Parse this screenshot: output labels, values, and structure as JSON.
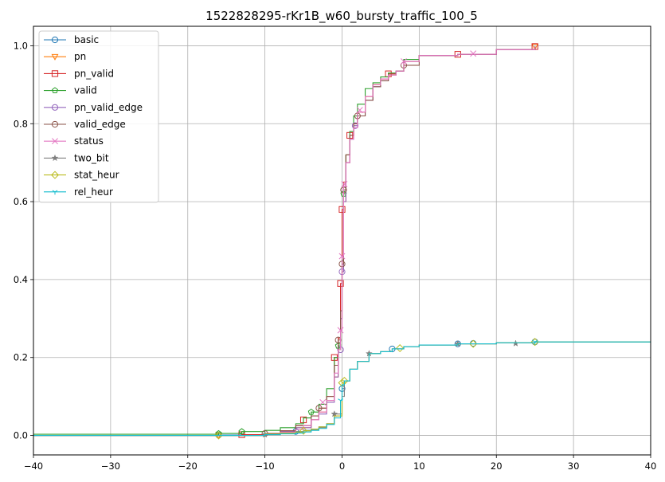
{
  "chart_data": {
    "type": "line",
    "title": "1522828295-rKr1B_w60_bursty_traffic_100_5",
    "xlabel": "",
    "ylabel": "",
    "xlim": [
      -40,
      40
    ],
    "ylim": [
      -0.05,
      1.05
    ],
    "xticks": [
      -40,
      -30,
      -20,
      -10,
      0,
      10,
      20,
      30,
      40
    ],
    "yticks": [
      0.0,
      0.2,
      0.4,
      0.6,
      0.8,
      1.0
    ],
    "xtick_labels": [
      "−40",
      "−30",
      "−20",
      "−10",
      "0",
      "10",
      "20",
      "30",
      "40"
    ],
    "ytick_labels": [
      "0.0",
      "0.2",
      "0.4",
      "0.6",
      "0.8",
      "1.0"
    ],
    "grid": true,
    "legend_position": "top-left",
    "series": [
      {
        "name": "basic",
        "color": "#1f77b4",
        "marker": "circle",
        "x": [
          -40,
          -16,
          -10,
          -8,
          -6,
          -5,
          -4,
          -3,
          -2,
          -1,
          0,
          0.3,
          1,
          2,
          3.5,
          5,
          6.5,
          8,
          10,
          15,
          20,
          25,
          40
        ],
        "y": [
          0.0,
          0.001,
          0.003,
          0.005,
          0.01,
          0.013,
          0.016,
          0.022,
          0.03,
          0.05,
          0.12,
          0.14,
          0.17,
          0.19,
          0.21,
          0.215,
          0.222,
          0.228,
          0.232,
          0.235,
          0.238,
          0.24,
          0.24
        ],
        "markers_x": [
          -16,
          -6,
          0,
          6.5,
          15,
          17,
          25
        ],
        "markers_y": [
          0.001,
          0.01,
          0.12,
          0.222,
          0.235,
          0.236,
          0.24
        ]
      },
      {
        "name": "pn",
        "color": "#ff7f0e",
        "marker": "triangle-down",
        "x": [
          -40,
          -16,
          -10,
          -8,
          -6,
          -4,
          -3,
          -2,
          -1,
          -0.5,
          -0.2,
          0,
          0.2,
          0.5,
          1,
          1.5,
          2,
          3,
          4,
          5,
          6,
          7,
          8,
          10,
          15,
          20,
          25
        ],
        "y": [
          0.0,
          0.0,
          0.005,
          0.01,
          0.02,
          0.04,
          0.06,
          0.09,
          0.15,
          0.22,
          0.3,
          0.42,
          0.6,
          0.7,
          0.77,
          0.8,
          0.83,
          0.87,
          0.9,
          0.915,
          0.925,
          0.935,
          0.96,
          0.975,
          0.978,
          0.99,
          0.998
        ],
        "markers_x": [
          -16,
          25
        ],
        "markers_y": [
          0.0,
          0.998
        ]
      },
      {
        "name": "pn_valid",
        "color": "#d62728",
        "marker": "square",
        "x": [
          -40,
          -16,
          -13,
          -10,
          -8,
          -6,
          -4,
          -3,
          -2,
          -1,
          -0.5,
          -0.2,
          0,
          0.2,
          0.5,
          1,
          1.5,
          2,
          3,
          4,
          5,
          6,
          7,
          8,
          10,
          15,
          20,
          25
        ],
        "y": [
          0.0,
          0.0,
          0.002,
          0.005,
          0.012,
          0.025,
          0.04,
          0.07,
          0.1,
          0.2,
          0.25,
          0.39,
          0.58,
          0.65,
          0.72,
          0.77,
          0.8,
          0.83,
          0.87,
          0.9,
          0.915,
          0.928,
          0.935,
          0.96,
          0.975,
          0.978,
          0.99,
          0.998
        ],
        "markers_x": [
          -13,
          -5,
          -1,
          -0.2,
          0,
          1,
          6,
          15,
          25
        ],
        "markers_y": [
          0.002,
          0.04,
          0.2,
          0.39,
          0.58,
          0.77,
          0.928,
          0.978,
          0.998
        ]
      },
      {
        "name": "valid",
        "color": "#2ca02c",
        "marker": "pentagon",
        "x": [
          -40,
          -16,
          -13,
          -10,
          -8,
          -6,
          -5,
          -4,
          -3,
          -2,
          -1,
          -0.5,
          -0.2,
          0,
          0.2,
          0.5,
          1,
          1.5,
          2,
          3,
          4,
          5,
          6,
          7,
          8,
          10,
          15,
          20,
          25
        ],
        "y": [
          0.003,
          0.005,
          0.01,
          0.013,
          0.02,
          0.03,
          0.045,
          0.06,
          0.08,
          0.12,
          0.2,
          0.23,
          0.3,
          0.45,
          0.62,
          0.72,
          0.78,
          0.82,
          0.85,
          0.89,
          0.905,
          0.92,
          0.93,
          0.935,
          0.965,
          0.975,
          0.978,
          0.99,
          0.998
        ],
        "markers_x": [
          -16,
          -13,
          -4,
          -0.5,
          0.2
        ],
        "markers_y": [
          0.005,
          0.01,
          0.06,
          0.23,
          0.62
        ]
      },
      {
        "name": "pn_valid_edge",
        "color": "#9467bd",
        "marker": "circle",
        "x": [
          -40,
          -16,
          -10,
          -8,
          -6,
          -4,
          -3,
          -2,
          -1,
          -0.5,
          -0.2,
          0,
          0.2,
          0.5,
          1,
          1.5,
          2,
          3,
          4,
          5,
          6,
          7,
          8,
          10,
          15,
          20,
          25
        ],
        "y": [
          0.0,
          0.0,
          0.004,
          0.01,
          0.02,
          0.04,
          0.055,
          0.085,
          0.15,
          0.22,
          0.3,
          0.42,
          0.6,
          0.7,
          0.76,
          0.795,
          0.82,
          0.86,
          0.895,
          0.91,
          0.925,
          0.935,
          0.96,
          0.975,
          0.978,
          0.99,
          0.998
        ],
        "markers_x": [
          -0.2,
          0,
          1.7
        ],
        "markers_y": [
          0.22,
          0.42,
          0.795
        ]
      },
      {
        "name": "valid_edge",
        "color": "#8c564b",
        "marker": "circle",
        "x": [
          -40,
          -16,
          -10,
          -8,
          -6,
          -4,
          -3,
          -2,
          -1,
          -0.5,
          -0.2,
          0,
          0.2,
          0.5,
          1,
          1.5,
          2,
          3,
          4,
          5,
          6,
          7,
          8,
          10,
          15,
          20,
          25
        ],
        "y": [
          0.0,
          0.0,
          0.005,
          0.012,
          0.025,
          0.05,
          0.07,
          0.1,
          0.18,
          0.245,
          0.32,
          0.44,
          0.63,
          0.72,
          0.77,
          0.8,
          0.82,
          0.86,
          0.895,
          0.91,
          0.925,
          0.935,
          0.95,
          0.975,
          0.978,
          0.99,
          0.998
        ],
        "markers_x": [
          -10,
          -3,
          -0.5,
          0,
          0.2,
          2,
          8
        ],
        "markers_y": [
          0.005,
          0.07,
          0.245,
          0.44,
          0.63,
          0.82,
          0.95
        ]
      },
      {
        "name": "status",
        "color": "#e377c2",
        "marker": "x",
        "x": [
          -40,
          -16,
          -10,
          -8,
          -6,
          -5,
          -4,
          -3,
          -2,
          -1,
          -0.5,
          -0.2,
          0,
          0.2,
          0.5,
          1,
          1.5,
          2,
          3,
          4,
          5,
          6,
          7,
          8,
          10,
          15,
          20,
          25
        ],
        "y": [
          0.0,
          0.0,
          0.003,
          0.008,
          0.015,
          0.025,
          0.04,
          0.06,
          0.09,
          0.16,
          0.22,
          0.27,
          0.46,
          0.64,
          0.7,
          0.76,
          0.79,
          0.83,
          0.87,
          0.9,
          0.915,
          0.925,
          0.935,
          0.96,
          0.975,
          0.978,
          0.99,
          0.998
        ],
        "markers_x": [
          -2.5,
          -0.2,
          0,
          0.3,
          2.3,
          8,
          17
        ],
        "markers_y": [
          0.085,
          0.27,
          0.46,
          0.645,
          0.835,
          0.96,
          0.98
        ]
      },
      {
        "name": "two_bit",
        "color": "#7f7f7f",
        "marker": "star",
        "x": [
          -40,
          -16,
          -10,
          -8,
          -6,
          -5,
          -4,
          -3,
          -2,
          -1,
          0,
          0.3,
          1,
          2,
          3.5,
          5,
          6.5,
          8,
          10,
          15,
          20,
          25,
          40
        ],
        "y": [
          0.0,
          0.0,
          0.002,
          0.005,
          0.008,
          0.012,
          0.015,
          0.02,
          0.03,
          0.055,
          0.1,
          0.14,
          0.17,
          0.19,
          0.21,
          0.215,
          0.222,
          0.228,
          0.232,
          0.235,
          0.238,
          0.24,
          0.24
        ],
        "markers_x": [
          -10,
          -1,
          3.5,
          15,
          22.5
        ],
        "markers_y": [
          0.002,
          0.055,
          0.21,
          0.235,
          0.236
        ]
      },
      {
        "name": "stat_heur",
        "color": "#bcbd22",
        "marker": "diamond",
        "x": [
          -40,
          -16,
          -10,
          -8,
          -6,
          -5,
          -4,
          -3,
          -2,
          -1,
          0,
          0.3,
          1,
          2,
          3.5,
          5,
          6.5,
          8,
          10,
          15,
          20,
          25,
          40
        ],
        "y": [
          0.0,
          0.0,
          0.003,
          0.006,
          0.009,
          0.012,
          0.016,
          0.022,
          0.03,
          0.05,
          0.135,
          0.14,
          0.17,
          0.19,
          0.21,
          0.215,
          0.222,
          0.228,
          0.232,
          0.235,
          0.238,
          0.24,
          0.24
        ],
        "markers_x": [
          -16,
          -5,
          0,
          0.3,
          7.5,
          17,
          25
        ],
        "markers_y": [
          0.0,
          0.012,
          0.135,
          0.14,
          0.224,
          0.235,
          0.24
        ]
      },
      {
        "name": "rel_heur",
        "color": "#17becf",
        "marker": "tri-down",
        "x": [
          -40,
          -16,
          -10,
          -8,
          -6,
          -5,
          -4,
          -3,
          -2,
          -1,
          -0.2,
          0,
          0.3,
          1,
          2,
          3.5,
          5,
          6.5,
          8,
          10,
          15,
          20,
          25,
          40
        ],
        "y": [
          0.0,
          0.0,
          0.002,
          0.004,
          0.006,
          0.009,
          0.013,
          0.018,
          0.028,
          0.045,
          0.09,
          0.13,
          0.14,
          0.17,
          0.19,
          0.21,
          0.215,
          0.222,
          0.228,
          0.232,
          0.235,
          0.238,
          0.24,
          0.24
        ],
        "markers_x": [
          -0.2,
          25
        ],
        "markers_y": [
          0.09,
          0.24
        ]
      }
    ]
  }
}
